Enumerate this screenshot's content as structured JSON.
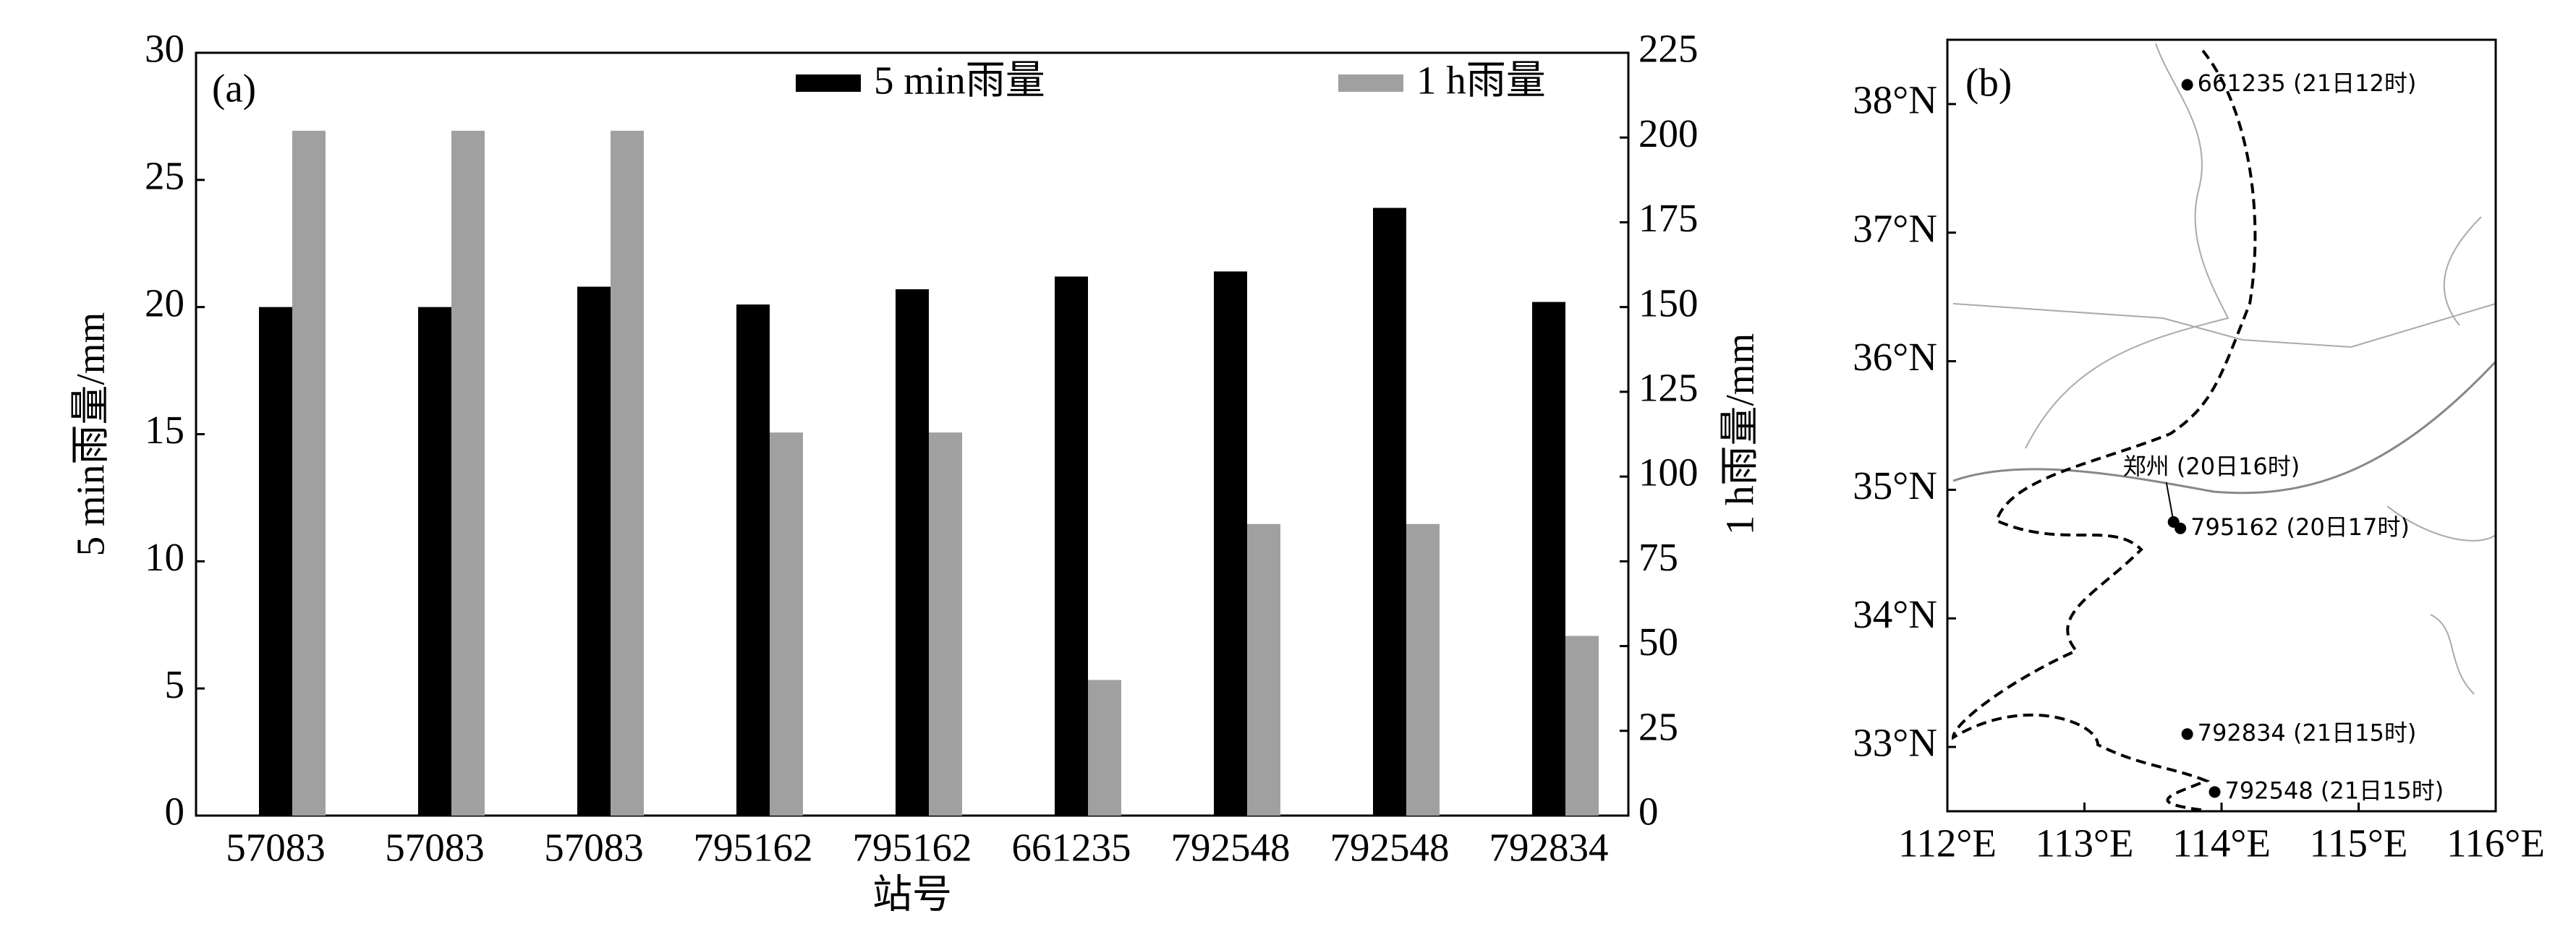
{
  "chart_data": [
    {
      "type": "bar",
      "panel_label": "(a)",
      "x_label": "站号",
      "y_label": "5 min雨量/mm",
      "y2_label": "1 h雨量/mm",
      "categories": [
        "57083",
        "57083",
        "57083",
        "795162",
        "795162",
        "661235",
        "792548",
        "792548",
        "792834"
      ],
      "series": [
        {
          "name": "5 min雨量",
          "color": "#000000",
          "values": [
            20,
            20,
            20.8,
            20.1,
            20.7,
            21.2,
            21.4,
            23.9,
            20.2
          ]
        },
        {
          "name": "1 h雨量",
          "color": "#a0a0a0",
          "axis": "y2",
          "values": [
            202,
            202,
            202,
            113,
            113,
            40,
            86,
            86,
            53
          ]
        }
      ],
      "ylim": [
        0,
        30
      ],
      "yticks": [
        0,
        5,
        10,
        15,
        20,
        25,
        30
      ],
      "y2lim": [
        0,
        225
      ],
      "y2ticks": [
        0,
        25,
        50,
        75,
        100,
        125,
        150,
        175,
        200,
        225
      ],
      "legend": "top"
    },
    {
      "type": "scatter",
      "panel_label": "(b)",
      "x": [
        113.75,
        113.65,
        113.7,
        113.75,
        113.95
      ],
      "values": [
        38.15,
        34.75,
        34.7,
        33.1,
        32.65
      ],
      "labels": [
        "661235 (21日12时)",
        "郑州 (20日16时)",
        "795162 (20日17时)",
        "792834 (21日15时)",
        "792548 (21日15时)"
      ],
      "color": "#000000",
      "xlim": [
        112,
        116
      ],
      "ylim": [
        32.5,
        38.5
      ],
      "xticks": [
        {
          "value": 112,
          "label": "112°E"
        },
        {
          "value": 113,
          "label": "113°E"
        },
        {
          "value": 114,
          "label": "114°E"
        },
        {
          "value": 115,
          "label": "115°E"
        },
        {
          "value": 116,
          "label": "116°E"
        }
      ],
      "yticks": [
        {
          "value": 33,
          "label": "33°N"
        },
        {
          "value": 34,
          "label": "34°N"
        },
        {
          "value": 35,
          "label": "35°N"
        },
        {
          "value": 36,
          "label": "36°N"
        },
        {
          "value": 37,
          "label": "37°N"
        },
        {
          "value": 38,
          "label": "38°N"
        }
      ]
    }
  ]
}
